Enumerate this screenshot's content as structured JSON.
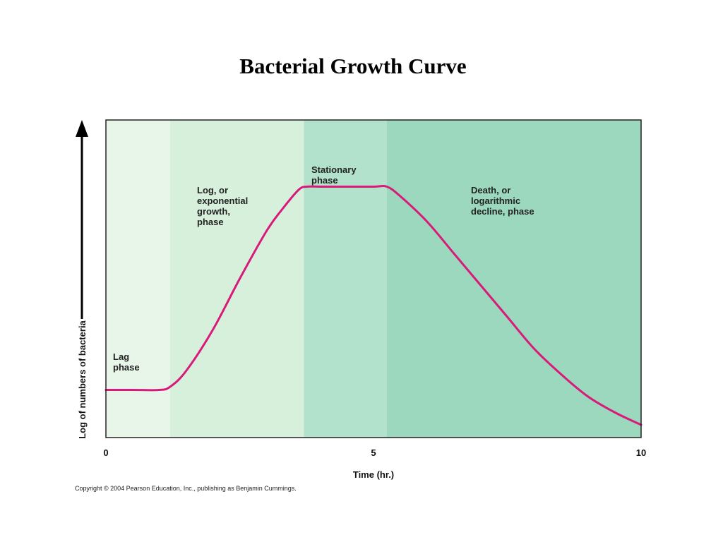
{
  "title": "Bacterial Growth Curve",
  "copyright": "Copyright © 2004 Pearson Education, Inc., publishing as Benjamin Cummings.",
  "chart_data": {
    "type": "line",
    "title": "Bacterial Growth Curve",
    "xlabel": "Time (hr.)",
    "ylabel": "Log of numbers of bacteria",
    "xlim": [
      0,
      10
    ],
    "ylim": [
      0,
      10
    ],
    "x_ticks": [
      0,
      5,
      10
    ],
    "y_ticks": [],
    "grid": false,
    "curve_color": "#d81b7a",
    "phases": [
      {
        "name": "lag",
        "label": [
          "Lag",
          "phase"
        ],
        "x_start": 0,
        "x_end": 1.2,
        "color": "#e8f5e9"
      },
      {
        "name": "log",
        "label": [
          "Log, or",
          "exponential",
          "growth,",
          "phase"
        ],
        "x_start": 1.2,
        "x_end": 3.7,
        "color": "#d7f0dc"
      },
      {
        "name": "stationary",
        "label": [
          "Stationary",
          "phase"
        ],
        "x_start": 3.7,
        "x_end": 5.25,
        "color": "#b2e2cb"
      },
      {
        "name": "death",
        "label": [
          "Death, or",
          "logarithmic",
          "decline, phase"
        ],
        "x_start": 5.25,
        "x_end": 10,
        "color": "#9bd8bd"
      }
    ],
    "series": [
      {
        "x": [
          0,
          0.5,
          1.0,
          1.2,
          1.5,
          2.0,
          2.5,
          3.0,
          3.3,
          3.6,
          3.75,
          4.0,
          4.5,
          5.0,
          5.25,
          5.5,
          6.0,
          6.5,
          7.0,
          7.5,
          8.0,
          8.5,
          9.0,
          9.5,
          10.0
        ],
        "y": [
          1.5,
          1.5,
          1.5,
          1.6,
          2.1,
          3.4,
          5.0,
          6.5,
          7.2,
          7.8,
          7.9,
          7.9,
          7.9,
          7.9,
          7.9,
          7.6,
          6.8,
          5.8,
          4.8,
          3.8,
          2.8,
          2.0,
          1.3,
          0.8,
          0.4
        ]
      }
    ]
  }
}
